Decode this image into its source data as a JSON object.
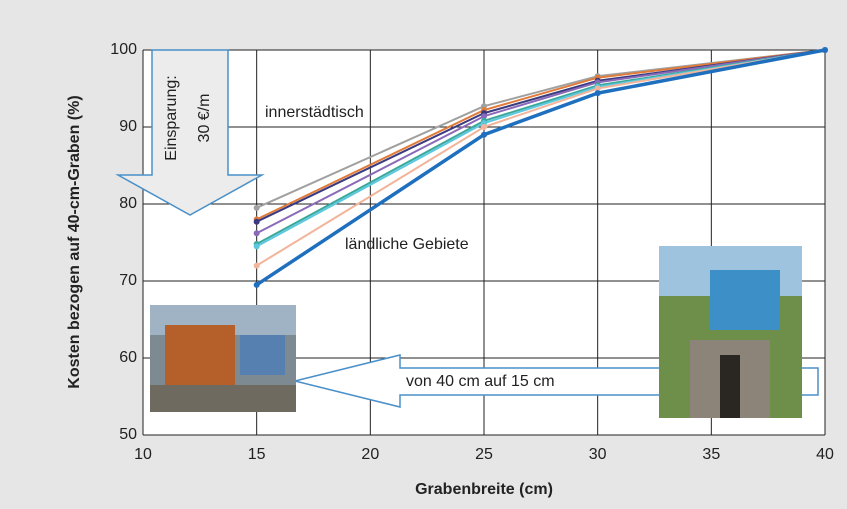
{
  "chart_data": {
    "type": "line",
    "xlabel": "Grabenbreite (cm)",
    "ylabel": "Kosten bezogen auf 40-cm-Graben (%)",
    "x": [
      15,
      25,
      30,
      40
    ],
    "series": [
      {
        "color": "#a0a0a0",
        "values": [
          79.5,
          92.7,
          96.6,
          100
        ]
      },
      {
        "color": "#e07b39",
        "values": [
          78,
          92.2,
          96.4,
          100
        ]
      },
      {
        "color": "#3a3a80",
        "values": [
          77.7,
          91.8,
          96.0,
          100
        ]
      },
      {
        "color": "#8a6ab8",
        "values": [
          76.2,
          91.4,
          95.8,
          100
        ]
      },
      {
        "color": "#3aa89a",
        "values": [
          74.8,
          90.8,
          95.4,
          100
        ]
      },
      {
        "color": "#5cc8e0",
        "values": [
          74.5,
          90.5,
          95.2,
          100
        ]
      },
      {
        "color": "#f2b49a",
        "values": [
          72,
          90,
          95,
          100
        ]
      },
      {
        "color": "#1f6fbf",
        "values": [
          69.5,
          89,
          94.4,
          100
        ]
      }
    ],
    "xlim": [
      10,
      40
    ],
    "xticks": [
      10,
      15,
      20,
      25,
      30,
      35,
      40
    ],
    "ylim": [
      50,
      100
    ],
    "yticks": [
      50,
      60,
      70,
      80,
      90,
      100
    ],
    "grid": true,
    "annotations": {
      "urban": "innerstädtisch",
      "rural": "ländliche Gebiete",
      "saving_1": "Einsparung:",
      "saving_2": "30 €/m",
      "width_change": "von 40 cm auf 15 cm"
    }
  }
}
